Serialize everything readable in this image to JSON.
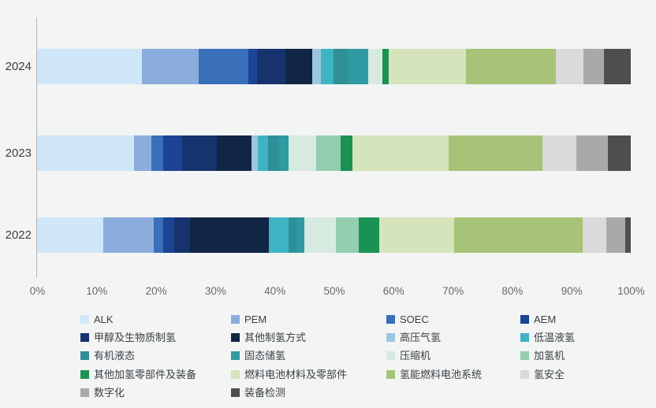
{
  "chart_data": {
    "type": "bar",
    "orientation": "horizontal-stacked",
    "title": "",
    "xlabel": "",
    "ylabel": "",
    "xlim": [
      0,
      100
    ],
    "grid": false,
    "legend_position": "bottom",
    "categories": [
      "2024",
      "2023",
      "2022"
    ],
    "x_ticks": [
      "0%",
      "10%",
      "20%",
      "30%",
      "40%",
      "50%",
      "60%",
      "70%",
      "80%",
      "90%",
      "100%"
    ],
    "unit": "percent",
    "series": [
      {
        "name": "ALK",
        "color": "#cfe7f8",
        "values": [
          17.7,
          16.4,
          11.1
        ]
      },
      {
        "name": "PEM",
        "color": "#8badde",
        "values": [
          9.5,
          2.8,
          8.5
        ]
      },
      {
        "name": "SOEC",
        "color": "#3a6fba",
        "values": [
          8.4,
          2.1,
          1.6
        ]
      },
      {
        "name": "AEM",
        "color": "#1b4494",
        "values": [
          1.5,
          3.1,
          1.9
        ]
      },
      {
        "name": "甲醇及生物质制氢",
        "color": "#16336e",
        "values": [
          4.7,
          5.9,
          2.7
        ]
      },
      {
        "name": "其他制氢方式",
        "color": "#112544",
        "values": [
          4.6,
          5.8,
          13.3
        ]
      },
      {
        "name": "高压气氢",
        "color": "#9dc5de",
        "values": [
          1.4,
          1.1,
          0
        ]
      },
      {
        "name": "低温液氢",
        "color": "#3eb3c4",
        "values": [
          2.2,
          1.7,
          3.3
        ]
      },
      {
        "name": "有机液态",
        "color": "#2e8f97",
        "values": [
          2.3,
          1.8,
          1.3
        ]
      },
      {
        "name": "固态储氢",
        "color": "#2f9aa1",
        "values": [
          3.5,
          1.7,
          1.3
        ]
      },
      {
        "name": "压缩机",
        "color": "#d7eae0",
        "values": [
          2.4,
          4.6,
          5.3
        ]
      },
      {
        "name": "加氢机",
        "color": "#93ceb0",
        "values": [
          0,
          4.2,
          3.9
        ]
      },
      {
        "name": "其他加氢零部件及装备",
        "color": "#1b9154",
        "values": [
          1.1,
          1.9,
          3.5
        ]
      },
      {
        "name": "燃料电池材料及零部件",
        "color": "#d6e4bc",
        "values": [
          13.0,
          16.2,
          12.6
        ]
      },
      {
        "name": "氢能燃料电池系统",
        "color": "#a7c378",
        "values": [
          15.1,
          15.9,
          21.6
        ]
      },
      {
        "name": "氢安全",
        "color": "#d9dad9",
        "values": [
          4.6,
          5.7,
          4.0
        ]
      },
      {
        "name": "数字化",
        "color": "#a9a9a9",
        "values": [
          3.5,
          5.2,
          3.2
        ]
      },
      {
        "name": "装备检测",
        "color": "#4d4e4e",
        "values": [
          4.5,
          3.9,
          0.95
        ]
      }
    ],
    "colors": {
      "background": "#f3f4f4",
      "axis_line": "#b4b4b4",
      "tick_text": "#686868",
      "category_text": "#3d3d3d",
      "legend_text": "#3a3e43"
    }
  }
}
